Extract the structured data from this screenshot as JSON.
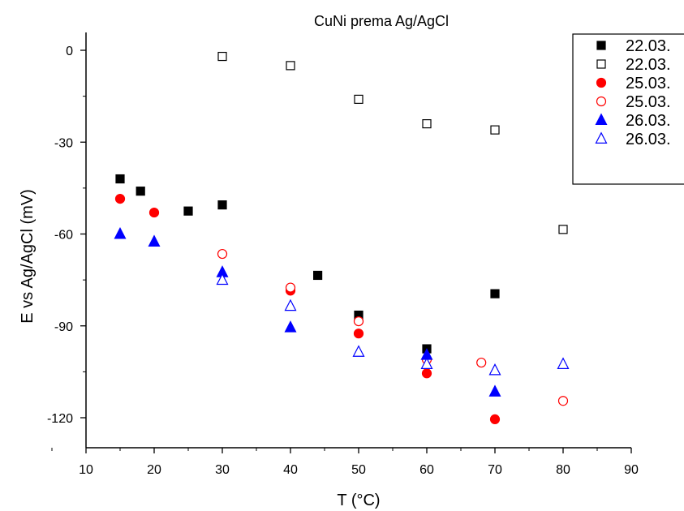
{
  "chart_data": {
    "type": "scatter",
    "title": "CuNi prema Ag/AgCl",
    "xlabel": "T (°C)",
    "ylabel": "E vs Ag/AgCl (mV)",
    "xlim": [
      10,
      90
    ],
    "ylim": [
      -130,
      2
    ],
    "xticks": [
      10,
      20,
      30,
      40,
      50,
      60,
      70,
      80,
      90
    ],
    "yticks": [
      0,
      -30,
      -60,
      -90,
      -120
    ],
    "grid": false,
    "legend_position": "top-right",
    "series": [
      {
        "name": "22.03.",
        "marker": "square",
        "filled": true,
        "color": "#000000",
        "points": [
          [
            15,
            -42
          ],
          [
            18,
            -46
          ],
          [
            25,
            -52.5
          ],
          [
            30,
            -50.5
          ],
          [
            44,
            -73.5
          ],
          [
            50,
            -86.5
          ],
          [
            60,
            -97.5
          ],
          [
            70,
            -79.5
          ]
        ]
      },
      {
        "name": "22.03.",
        "marker": "square",
        "filled": false,
        "color": "#000000",
        "points": [
          [
            30,
            -2
          ],
          [
            40,
            -5
          ],
          [
            50,
            -16
          ],
          [
            60,
            -24
          ],
          [
            70,
            -26
          ],
          [
            80,
            -58.5
          ]
        ]
      },
      {
        "name": "25.03.",
        "marker": "circle",
        "filled": true,
        "color": "#ff0000",
        "points": [
          [
            15,
            -48.5
          ],
          [
            20,
            -53
          ],
          [
            40,
            -78.5
          ],
          [
            50,
            -92.5
          ],
          [
            60,
            -105.5
          ],
          [
            70,
            -120.5
          ]
        ]
      },
      {
        "name": "25.03.",
        "marker": "circle",
        "filled": false,
        "color": "#ff0000",
        "points": [
          [
            30,
            -66.5
          ],
          [
            40,
            -77.5
          ],
          [
            50,
            -88.5
          ],
          [
            60,
            -101
          ],
          [
            68,
            -102
          ],
          [
            80,
            -114.5
          ]
        ]
      },
      {
        "name": "26.03.",
        "marker": "triangle",
        "filled": true,
        "color": "#0000ff",
        "points": [
          [
            15,
            -60
          ],
          [
            20,
            -62.5
          ],
          [
            30,
            -72.5
          ],
          [
            40,
            -90.5
          ],
          [
            60,
            -99.5
          ],
          [
            70,
            -111.5
          ]
        ]
      },
      {
        "name": "26.03.",
        "marker": "triangle",
        "filled": false,
        "color": "#0000ff",
        "points": [
          [
            30,
            -75
          ],
          [
            40,
            -83.5
          ],
          [
            50,
            -98.5
          ],
          [
            60,
            -102.5
          ],
          [
            70,
            -104.5
          ],
          [
            80,
            -102.5
          ]
        ]
      }
    ]
  }
}
